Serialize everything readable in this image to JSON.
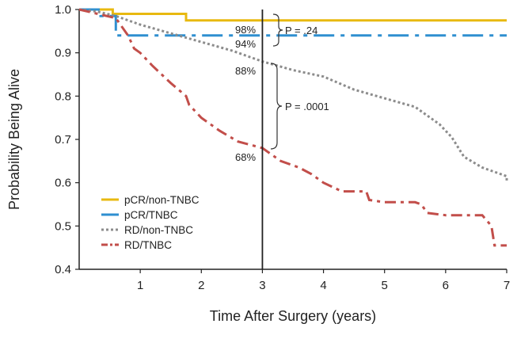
{
  "chart_data": {
    "type": "line",
    "subtype": "kaplan-meier step",
    "title": "",
    "xlabel": "Time After Surgery (years)",
    "ylabel": "Probability Being Alive",
    "xlim": [
      0,
      7
    ],
    "ylim": [
      0.4,
      1.0
    ],
    "xticks": [
      "1",
      "2",
      "3",
      "4",
      "5",
      "6",
      "7"
    ],
    "yticks": [
      "0.4",
      "0.5",
      "0.6",
      "0.7",
      "0.8",
      "0.9",
      "1.0"
    ],
    "reference_line_x": 3,
    "series": [
      {
        "name": "pCR/non-TNBC",
        "color": "#E8B910",
        "style": "solid",
        "points": [
          [
            0,
            1.0
          ],
          [
            0.55,
            1.0
          ],
          [
            0.55,
            0.99
          ],
          [
            1.75,
            0.99
          ],
          [
            1.75,
            0.975
          ],
          [
            7,
            0.975
          ]
        ]
      },
      {
        "name": "pCR/TNBC",
        "color": "#2F8FD0",
        "style": "dash-dot",
        "points": [
          [
            0,
            1.0
          ],
          [
            0.35,
            1.0
          ],
          [
            0.35,
            0.985
          ],
          [
            0.6,
            0.985
          ],
          [
            0.6,
            0.94
          ],
          [
            7,
            0.94
          ]
        ]
      },
      {
        "name": "RD/non-TNBC",
        "color": "#8C8C8C",
        "style": "dotted",
        "points": [
          [
            0,
            1.0
          ],
          [
            0.3,
            0.995
          ],
          [
            0.6,
            0.985
          ],
          [
            1.0,
            0.965
          ],
          [
            1.5,
            0.945
          ],
          [
            2.0,
            0.925
          ],
          [
            2.5,
            0.905
          ],
          [
            3.0,
            0.88
          ],
          [
            3.5,
            0.86
          ],
          [
            4.0,
            0.845
          ],
          [
            4.5,
            0.815
          ],
          [
            5.0,
            0.795
          ],
          [
            5.5,
            0.775
          ],
          [
            5.9,
            0.735
          ],
          [
            6.1,
            0.705
          ],
          [
            6.3,
            0.66
          ],
          [
            6.6,
            0.635
          ],
          [
            7.0,
            0.615
          ],
          [
            7.0,
            0.6
          ]
        ]
      },
      {
        "name": "RD/TNBC",
        "color": "#C24E4A",
        "style": "long-dash-dot",
        "points": [
          [
            0,
            1.0
          ],
          [
            0.6,
            0.98
          ],
          [
            0.8,
            0.94
          ],
          [
            0.9,
            0.91
          ],
          [
            1.0,
            0.9
          ],
          [
            1.2,
            0.87
          ],
          [
            1.5,
            0.83
          ],
          [
            1.75,
            0.8
          ],
          [
            1.8,
            0.78
          ],
          [
            2.0,
            0.75
          ],
          [
            2.3,
            0.72
          ],
          [
            2.6,
            0.695
          ],
          [
            3.0,
            0.68
          ],
          [
            3.3,
            0.65
          ],
          [
            3.6,
            0.635
          ],
          [
            3.8,
            0.62
          ],
          [
            4.0,
            0.6
          ],
          [
            4.3,
            0.58
          ],
          [
            4.7,
            0.58
          ],
          [
            4.75,
            0.56
          ],
          [
            5.0,
            0.555
          ],
          [
            5.5,
            0.555
          ],
          [
            5.6,
            0.55
          ],
          [
            5.7,
            0.53
          ],
          [
            6.0,
            0.525
          ],
          [
            6.6,
            0.525
          ],
          [
            6.75,
            0.5
          ],
          [
            6.8,
            0.455
          ],
          [
            7.0,
            0.455
          ]
        ]
      }
    ],
    "annotations": [
      {
        "text": "98%",
        "x": 3,
        "y": 0.975
      },
      {
        "text": "94%",
        "x": 3,
        "y": 0.94
      },
      {
        "text": "88%",
        "x": 3,
        "y": 0.88
      },
      {
        "text": "68%",
        "x": 3,
        "y": 0.68
      },
      {
        "text": "P = .24",
        "x": 3,
        "y": 0.96
      },
      {
        "text": "P = .0001",
        "x": 3,
        "y": 0.78
      }
    ],
    "legend_position": "bottom-left"
  }
}
